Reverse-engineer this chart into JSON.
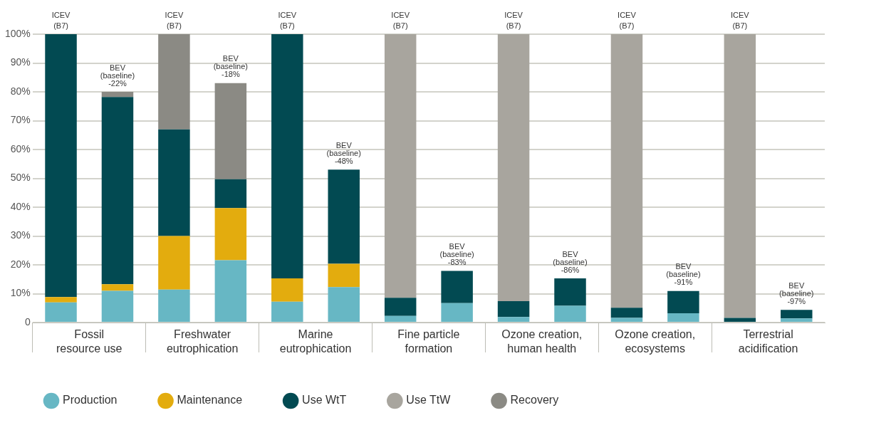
{
  "chart_data": {
    "type": "bar",
    "stacked": true,
    "categories": [
      "Fossil resource use",
      null,
      "Freshwater eutrophication",
      null,
      "Marine eutrophication",
      null,
      "Fine particle formation",
      null,
      "Ozone creation, human health",
      null,
      "Ozone creation, ecosystems",
      null,
      "Terrestrial acidification",
      null
    ],
    "series": [
      {
        "name": "Production",
        "color": "#67b7c4",
        "values": [
          7,
          11,
          11.4,
          21.6,
          7.2,
          12.3,
          2.3,
          6.7,
          1.9,
          5.8,
          1.6,
          3.2,
          null,
          1.4
        ]
      },
      {
        "name": "Maintenance",
        "color": "#e3ac0e",
        "values": [
          1.8,
          2.3,
          18.6,
          18.1,
          8.1,
          8.1,
          null,
          null,
          null,
          null,
          null,
          null,
          null,
          null
        ]
      },
      {
        "name": "Use WtT",
        "color": "#024a52",
        "values": [
          91.2,
          64.9,
          37,
          10,
          84.7,
          32.6,
          6.3,
          11.2,
          5.5,
          9.5,
          3.5,
          7.7,
          1.6,
          3
        ]
      },
      {
        "name": "Use TtW",
        "color": "#a8a59e",
        "values": [
          null,
          null,
          null,
          null,
          null,
          null,
          91.4,
          null,
          92.6,
          null,
          94.9,
          null,
          98.4,
          null
        ]
      },
      {
        "name": "Recovery",
        "color": "#8b8a84",
        "values": [
          null,
          1.8,
          33,
          33.3,
          null,
          null,
          null,
          null,
          null,
          null,
          null,
          null,
          null,
          null
        ]
      }
    ],
    "ylim": [
      0,
      100
    ],
    "yticks": [
      {
        "value": 0,
        "label": "0"
      },
      {
        "value": 10,
        "label": "10%"
      },
      {
        "value": 20,
        "label": "20%"
      },
      {
        "value": 30,
        "label": "30%"
      },
      {
        "value": 40,
        "label": "40%"
      },
      {
        "value": 50,
        "label": "50%"
      },
      {
        "value": 60,
        "label": "60%"
      },
      {
        "value": 70,
        "label": "70%"
      },
      {
        "value": 80,
        "label": "80%"
      },
      {
        "value": 90,
        "label": "90%"
      },
      {
        "value": 100,
        "label": "100%"
      }
    ],
    "grid": "y",
    "legend": "bottom left",
    "marker": "circle",
    "annotations": [
      "ICEV (B7)",
      "BEV (baseline) -22%",
      "ICEV (B7)",
      "BEV (baseline) -18%",
      "ICEV (B7)",
      "BEV (baseline) -48%",
      "ICEV (B7)",
      "BEV (baseline) -83%",
      "ICEV (B7)",
      "BEV (baseline) -86%",
      "ICEV (B7)",
      "BEV (baseline) -91%",
      "ICEV (B7)",
      "BEV (baseline) -97%"
    ]
  }
}
